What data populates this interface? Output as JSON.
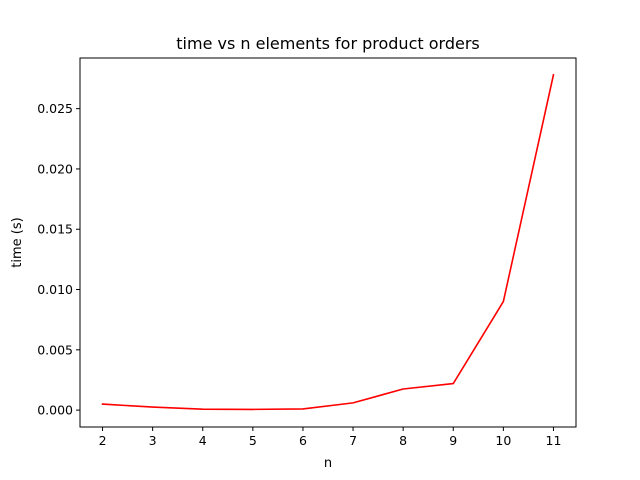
{
  "chart_data": {
    "type": "line",
    "title": "time vs n elements for product orders",
    "xlabel": "n",
    "ylabel": "time (s)",
    "x": [
      2,
      3,
      4,
      5,
      6,
      7,
      8,
      9,
      10,
      11
    ],
    "series": [
      {
        "color": "#ff0000",
        "values": [
          0.0005,
          0.00025,
          8e-05,
          6e-05,
          0.0001,
          0.0006,
          0.00175,
          0.0022,
          0.009,
          0.0278
        ]
      }
    ],
    "xticks": [
      2,
      3,
      4,
      5,
      6,
      7,
      8,
      9,
      10,
      11
    ],
    "yticks": [
      0.0,
      0.005,
      0.01,
      0.015,
      0.02,
      0.025
    ],
    "ytick_labels": [
      "0.000",
      "0.005",
      "0.010",
      "0.015",
      "0.020",
      "0.025"
    ],
    "xlim": [
      1.55,
      11.45
    ],
    "ylim": [
      -0.0014,
      0.0292
    ],
    "grid": false,
    "legend": false
  }
}
